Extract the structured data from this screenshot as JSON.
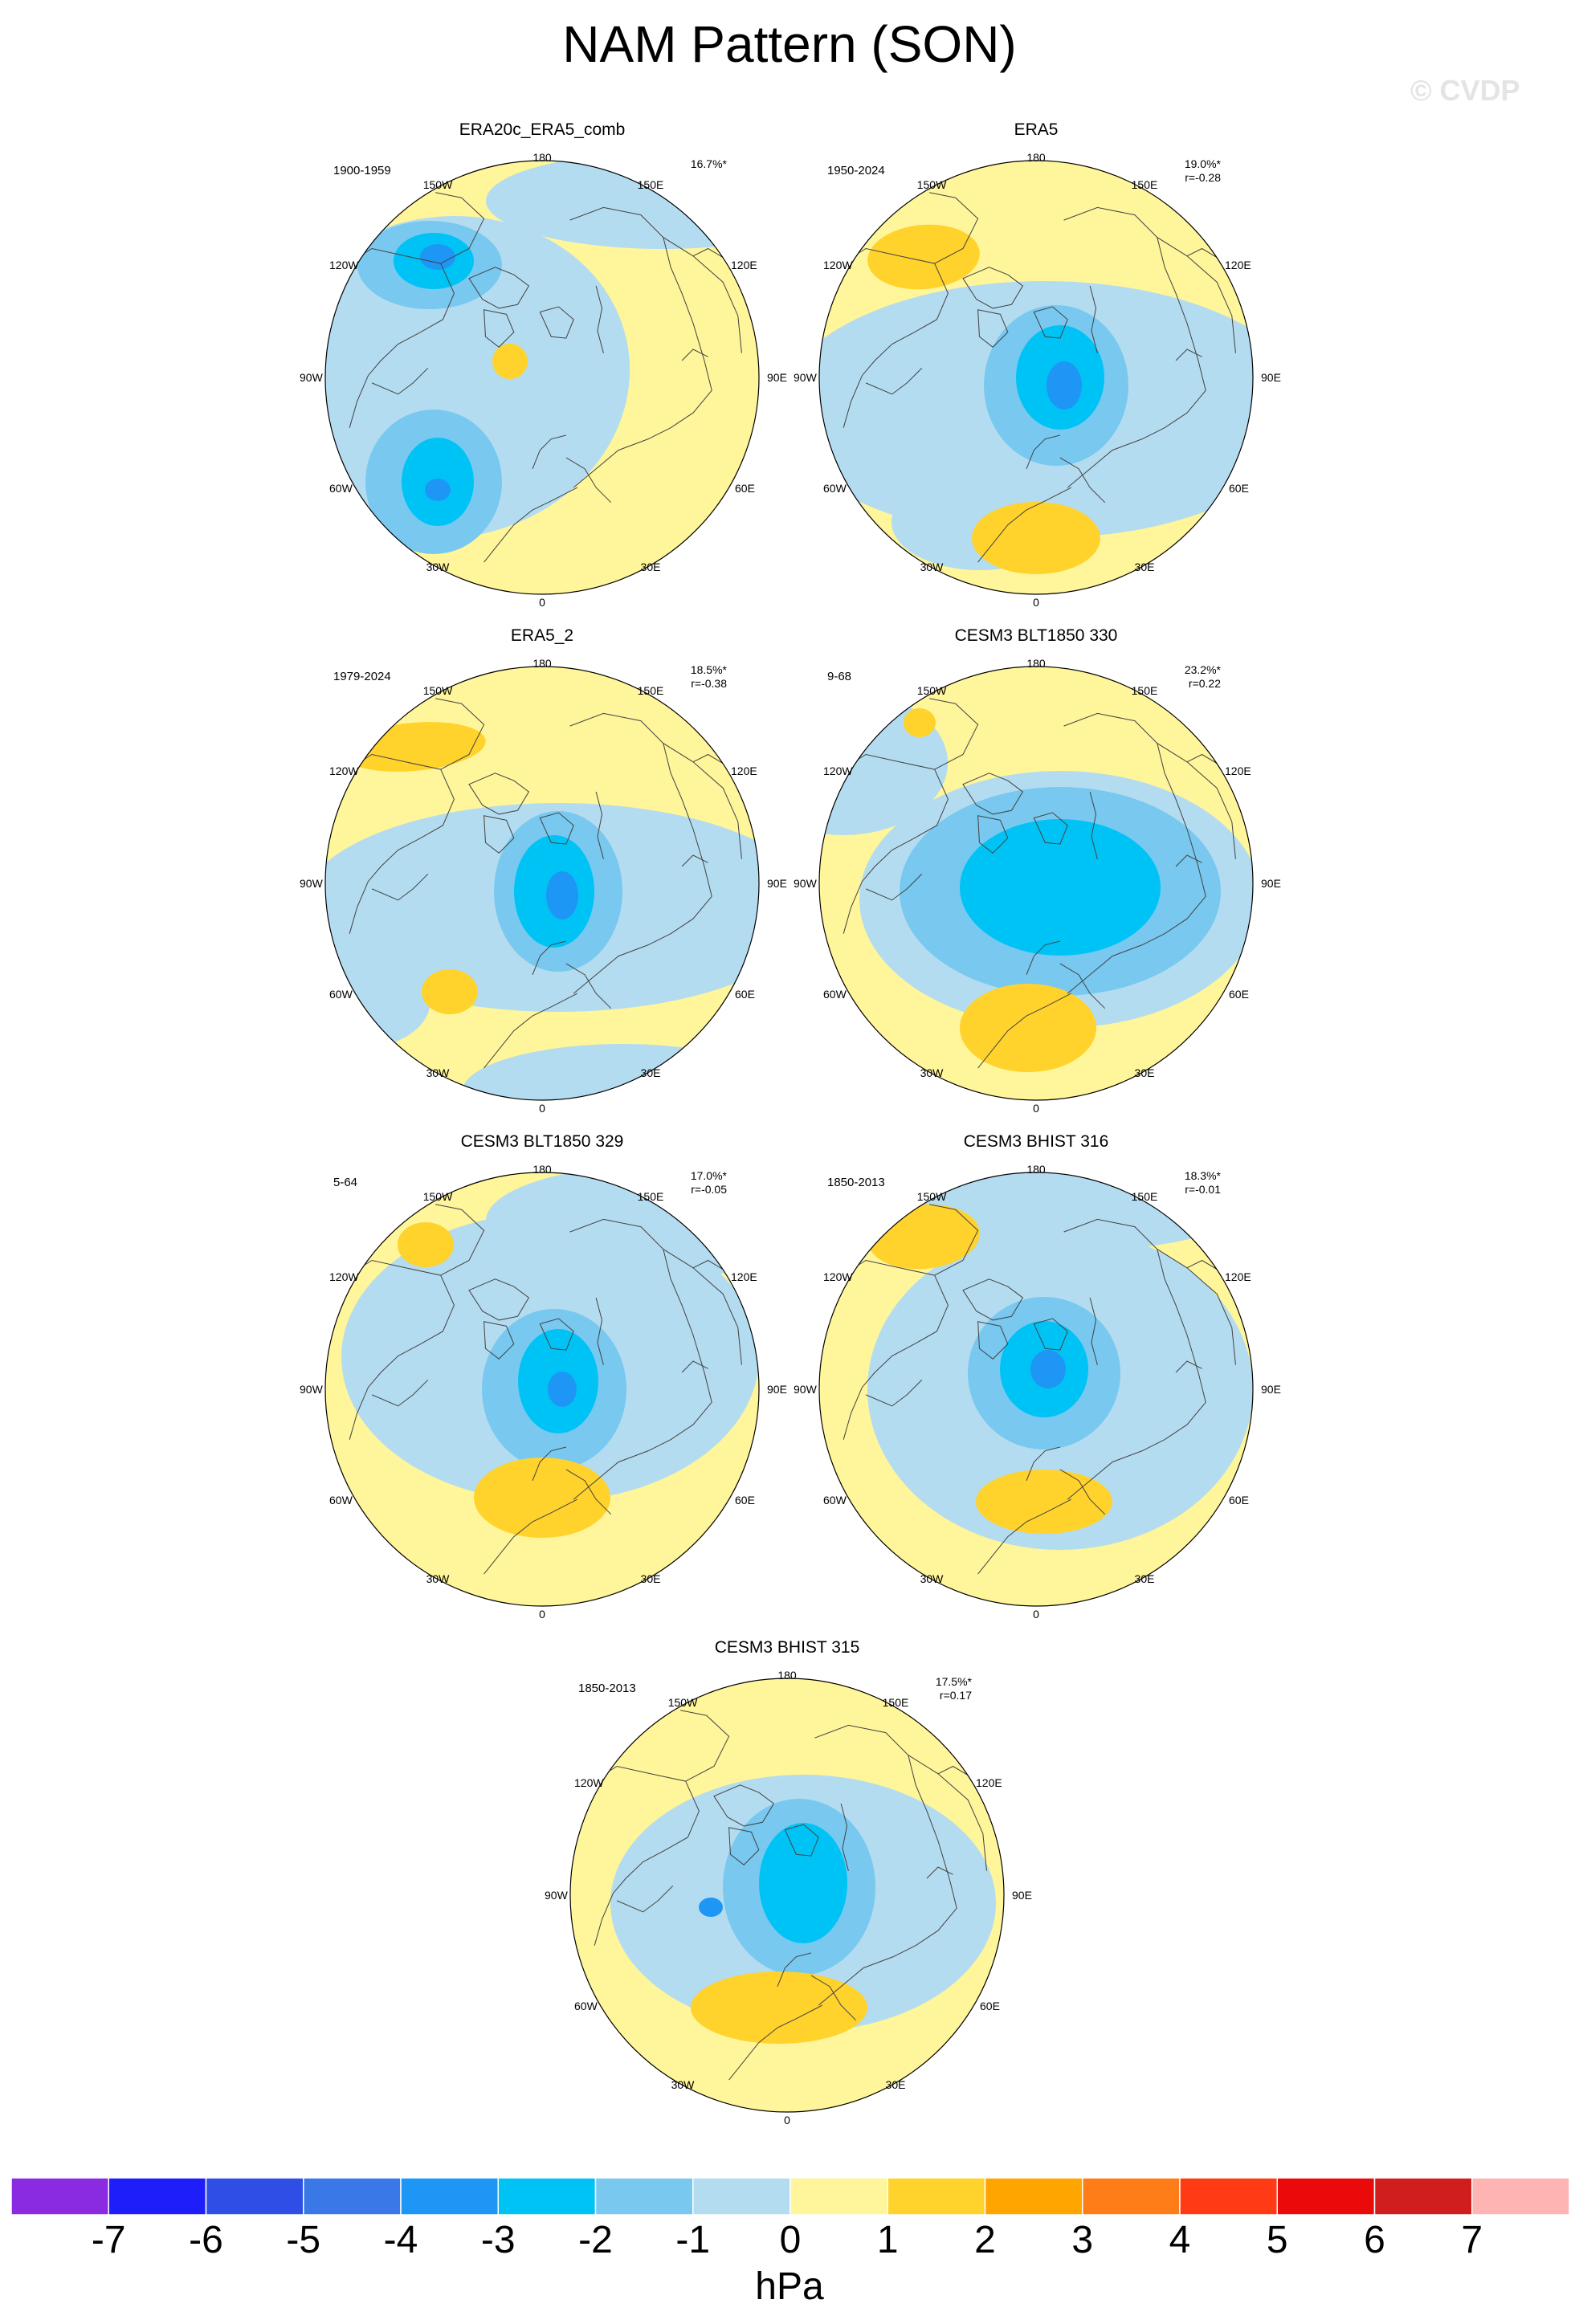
{
  "title": "NAM Pattern (SON)",
  "watermark": "© CVDP",
  "units": "hPa",
  "lon_labels": {
    "top": "180",
    "bottom": "0",
    "upper_left": "150W",
    "upper_right": "150E",
    "left_upper": "120W",
    "right_upper": "120E",
    "left": "90W",
    "right": "90E",
    "left_lower": "60W",
    "right_lower": "60E",
    "lower_left": "30W",
    "lower_right": "30E"
  },
  "panels": [
    {
      "title": "ERA20c_ERA5_comb",
      "period": "1900-1959",
      "variance": "16.7%*",
      "corr": ""
    },
    {
      "title": "ERA5",
      "period": "1950-2024",
      "variance": "19.0%*",
      "corr": "r=-0.28"
    },
    {
      "title": "ERA5_2",
      "period": "1979-2024",
      "variance": "18.5%*",
      "corr": "r=-0.38"
    },
    {
      "title": "CESM3 BLT1850 330",
      "period": "9-68",
      "variance": "23.2%*",
      "corr": "r=0.22"
    },
    {
      "title": "CESM3 BLT1850 329",
      "period": "5-64",
      "variance": "17.0%*",
      "corr": "r=-0.05"
    },
    {
      "title": "CESM3 BHIST 316",
      "period": "1850-2013",
      "variance": "18.3%*",
      "corr": "r=-0.01"
    },
    {
      "title": "CESM3 BHIST 315",
      "period": "1850-2013",
      "variance": "17.5%*",
      "corr": "r=0.17"
    }
  ],
  "colorbar": {
    "ticks": [
      "-7",
      "-6",
      "-5",
      "-4",
      "-3",
      "-2",
      "-1",
      "0",
      "1",
      "2",
      "3",
      "4",
      "5",
      "6",
      "7"
    ],
    "colors": [
      "#8a2be2",
      "#1e1efa",
      "#2e4ee6",
      "#3a78e8",
      "#1e96f5",
      "#00c3f5",
      "#78c8f0",
      "#b4dcf0",
      "#fff59a",
      "#ffd22c",
      "#ffa500",
      "#ff7d18",
      "#ff3a14",
      "#eb0a0a",
      "#d01e1e",
      "#ffb4b4"
    ]
  }
}
